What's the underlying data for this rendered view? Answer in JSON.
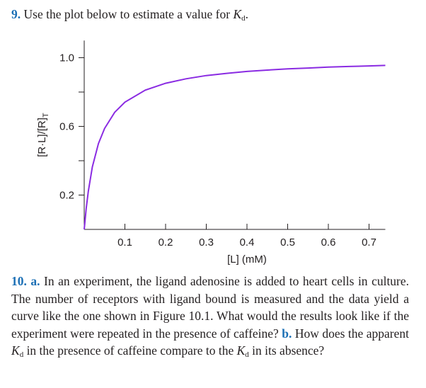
{
  "question9": {
    "number": "9.",
    "text": "Use the plot below to estimate a value for",
    "kd_symbol": "K",
    "kd_sub": "d",
    "end": "."
  },
  "chart_data": {
    "type": "line",
    "xlabel": "[L] (mM)",
    "ylabel": "[R·L]/[R]",
    "ylabel_sub": "T",
    "x_ticks": [
      "0.1",
      "0.2",
      "0.3",
      "0.4",
      "0.5",
      "0.6",
      "0.7"
    ],
    "y_ticks": [
      "0.2",
      "0.6",
      "1.0"
    ],
    "xlim": [
      0,
      0.75
    ],
    "ylim": [
      0,
      1.05
    ],
    "kd": 0.035,
    "series": [
      {
        "color": "#8a2be2",
        "x": [
          0,
          0.005,
          0.01,
          0.02,
          0.035,
          0.05,
          0.075,
          0.1,
          0.15,
          0.2,
          0.25,
          0.3,
          0.35,
          0.4,
          0.45,
          0.5,
          0.55,
          0.6,
          0.65,
          0.7,
          0.74
        ],
        "y": [
          0,
          0.125,
          0.222,
          0.364,
          0.5,
          0.588,
          0.682,
          0.741,
          0.811,
          0.851,
          0.877,
          0.896,
          0.909,
          0.92,
          0.928,
          0.935,
          0.94,
          0.945,
          0.949,
          0.952,
          0.955
        ]
      }
    ]
  },
  "question10": {
    "number": "10.",
    "part_a_label": "a.",
    "part_a_text": "In an experiment, the ligand adenosine is added to heart cells in culture. The number of receptors with ligand bound is measured and the data yield a curve like the one shown in Figure 10.1. What would the results look like if the experiment were repeated in the presence of caffeine?",
    "part_b_label": "b.",
    "part_b_text_1": "How does the apparent",
    "part_b_text_2": "in the presence of caffeine compare to the",
    "part_b_text_3": "in its absence?",
    "kd_symbol": "K",
    "kd_sub": "d"
  }
}
